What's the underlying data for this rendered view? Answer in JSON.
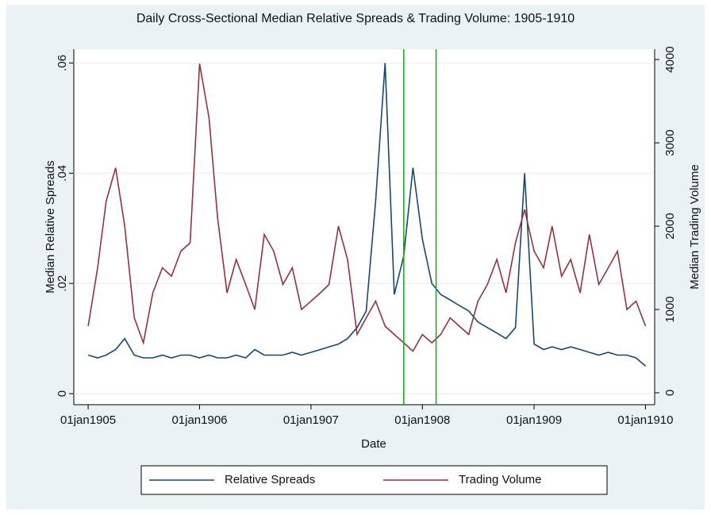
{
  "chart_data": {
    "type": "line",
    "title": "Daily Cross-Sectional Median Relative Spreads & Trading Volume: 1905-1910",
    "xlabel": "Date",
    "ylabel": "Median Relative Spreads",
    "y2label": "Median Trading Volume",
    "x": [
      "1905-01-01",
      "1905-02-01",
      "1905-03-01",
      "1905-04-01",
      "1905-05-01",
      "1905-06-01",
      "1905-07-01",
      "1905-08-01",
      "1905-09-01",
      "1905-10-01",
      "1905-11-01",
      "1905-12-01",
      "1906-01-01",
      "1906-02-01",
      "1906-03-01",
      "1906-04-01",
      "1906-05-01",
      "1906-06-01",
      "1906-07-01",
      "1906-08-01",
      "1906-09-01",
      "1906-10-01",
      "1906-11-01",
      "1906-12-01",
      "1907-01-01",
      "1907-02-01",
      "1907-03-01",
      "1907-04-01",
      "1907-05-01",
      "1907-06-01",
      "1907-07-01",
      "1907-08-01",
      "1907-09-01",
      "1907-10-01",
      "1907-11-01",
      "1907-12-01",
      "1908-01-01",
      "1908-02-01",
      "1908-03-01",
      "1908-04-01",
      "1908-05-01",
      "1908-06-01",
      "1908-07-01",
      "1908-08-01",
      "1908-09-01",
      "1908-10-01",
      "1908-11-01",
      "1908-12-01",
      "1909-01-01",
      "1909-02-01",
      "1909-03-01",
      "1909-04-01",
      "1909-05-01",
      "1909-06-01",
      "1909-07-01",
      "1909-08-01",
      "1909-09-01",
      "1909-10-01",
      "1909-11-01",
      "1909-12-01",
      "1910-01-01"
    ],
    "series": [
      {
        "name": "Relative Spreads",
        "color": "#1a476f",
        "values": [
          0.007,
          0.0065,
          0.007,
          0.008,
          0.01,
          0.007,
          0.0065,
          0.0065,
          0.007,
          0.0065,
          0.007,
          0.007,
          0.0065,
          0.007,
          0.0065,
          0.0065,
          0.007,
          0.0065,
          0.008,
          0.007,
          0.007,
          0.007,
          0.0075,
          0.007,
          0.0075,
          0.008,
          0.0085,
          0.009,
          0.01,
          0.012,
          0.015,
          0.035,
          0.06,
          0.018,
          0.025,
          0.041,
          0.028,
          0.02,
          0.018,
          0.017,
          0.016,
          0.015,
          0.013,
          0.012,
          0.011,
          0.01,
          0.012,
          0.04,
          0.009,
          0.008,
          0.0085,
          0.008,
          0.0085,
          0.008,
          0.0075,
          0.007,
          0.0075,
          0.007,
          0.007,
          0.0065,
          0.005
        ]
      },
      {
        "name": "Trading Volume",
        "color": "#90353b",
        "axis": "y2",
        "values": [
          800,
          1500,
          2300,
          2700,
          2000,
          900,
          600,
          1200,
          1500,
          1400,
          1700,
          1800,
          3950,
          3300,
          2100,
          1200,
          1600,
          1300,
          1000,
          1900,
          1700,
          1300,
          1500,
          1000,
          1100,
          1200,
          1300,
          2000,
          1600,
          700,
          900,
          1100,
          800,
          700,
          600,
          500,
          700,
          600,
          700,
          900,
          800,
          700,
          1100,
          1300,
          1600,
          1200,
          1800,
          2200,
          1700,
          1500,
          2000,
          1400,
          1600,
          1200,
          1900,
          1300,
          1500,
          1700,
          1000,
          1100,
          800
        ]
      }
    ],
    "vlines": [
      "1907-11-01",
      "1908-02-15"
    ],
    "vline_color": "#22aa22",
    "xlim": [
      "1904-11-15",
      "1910-01-31"
    ],
    "xticks": [
      {
        "value": "1905-01-01",
        "label": "01jan1905"
      },
      {
        "value": "1906-01-01",
        "label": "01jan1906"
      },
      {
        "value": "1907-01-01",
        "label": "01jan1907"
      },
      {
        "value": "1908-01-01",
        "label": "01jan1908"
      },
      {
        "value": "1909-01-01",
        "label": "01jan1909"
      },
      {
        "value": "1910-01-01",
        "label": "01jan1910"
      }
    ],
    "ylim": [
      -0.002,
      0.0625
    ],
    "yticks": [
      0,
      {
        "value": 0.02,
        "label": ".02"
      },
      {
        "value": 0.04,
        "label": ".04"
      },
      {
        "value": 0.06,
        "label": ".06"
      }
    ],
    "y2lim": [
      -143,
      4124
    ],
    "y2ticks": [
      0,
      1000,
      2000,
      3000,
      4000
    ],
    "grid": true,
    "legend": "bottom"
  }
}
